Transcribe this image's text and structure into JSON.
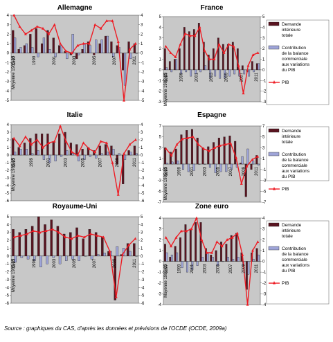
{
  "source": "Source : graphiques du CAS, d'après les données et prévisions de l'OCDE (OCDE, 2009a)",
  "colors": {
    "demand": "#5a1420",
    "balance": "#9ea4d8",
    "gdp": "#ee1c24",
    "plot_bg": "#c8c8c8"
  },
  "legend_items": [
    {
      "key": "demand",
      "label_lines": [
        "Demande",
        "intérieure",
        "totale"
      ]
    },
    {
      "key": "balance",
      "label_lines": [
        "Contribution",
        "de la balance",
        "commerciale",
        "aux variations",
        "du PIB"
      ]
    },
    {
      "key": "gdp",
      "label_lines": [
        "PIB"
      ]
    }
  ],
  "chart_data": [
    {
      "type": "bar",
      "title": "Allemagne",
      "ylabel": "Moyenne 1985-95",
      "ylim": [
        -5,
        4
      ],
      "yticks": [
        4,
        3,
        2,
        1,
        0,
        -1,
        -2,
        -3,
        -4,
        -5
      ],
      "xticks": [
        "1997",
        "1999",
        "2001",
        "2003",
        "2005",
        "2007",
        "2011"
      ],
      "series": [
        {
          "key": "demand",
          "values": [
            2.4,
            0.4,
            0.8,
            2.0,
            2.6,
            1.0,
            2.4,
            1.6,
            0.8,
            0.2,
            -0.2,
            -0.6,
            0.4,
            1.2,
            -0.2,
            1.0,
            1.8,
            1.2,
            0.8,
            -1.8,
            1.2,
            1.0
          ]
        },
        {
          "key": "balance",
          "values": [
            1.6,
            0.6,
            1.0,
            0.6,
            -0.4,
            1.6,
            0.4,
            -0.4,
            0.8,
            -0.6,
            2.0,
            -0.2,
            1.0,
            0.8,
            1.4,
            1.4,
            1.8,
            -0.4,
            0.6,
            -3.4,
            -0.6,
            0.0
          ]
        },
        {
          "key": "gdp",
          "values": [
            4.0,
            2.8,
            2.0,
            2.4,
            2.8,
            2.6,
            2.0,
            3.0,
            1.0,
            0.2,
            0.0,
            0.8,
            1.0,
            1.0,
            3.0,
            2.6,
            3.4,
            3.4,
            1.2,
            -5.0,
            0.4,
            1.0
          ]
        }
      ]
    },
    {
      "type": "bar",
      "title": "France",
      "ylabel": "Moyenne 1985-95",
      "ylim": [
        -3,
        5
      ],
      "yticks": [
        5,
        4,
        3,
        2,
        1,
        0,
        -1,
        -2,
        -3
      ],
      "xticks": [
        "1997",
        "1999",
        "2001",
        "2003",
        "2005",
        "2007",
        "2011"
      ],
      "series": [
        {
          "key": "demand",
          "values": [
            2.0,
            0.8,
            1.0,
            2.0,
            4.0,
            3.6,
            3.8,
            4.4,
            2.6,
            1.4,
            2.0,
            3.0,
            2.4,
            2.4,
            2.6,
            2.0,
            0.4,
            -0.2,
            0.8,
            0.6
          ]
        },
        {
          "key": "balance",
          "values": [
            0.2,
            -0.2,
            1.0,
            -0.4,
            -0.2,
            -0.6,
            -0.4,
            -0.2,
            0.4,
            -0.8,
            -0.6,
            -0.8,
            -0.8,
            -0.6,
            -0.4,
            -0.6,
            -0.4,
            -0.6,
            -0.2,
            0.6
          ]
        },
        {
          "key": "gdp",
          "values": [
            2.2,
            1.6,
            1.2,
            2.4,
            3.4,
            3.2,
            3.2,
            4.0,
            1.8,
            1.0,
            1.0,
            2.4,
            1.6,
            2.4,
            2.2,
            0.4,
            -2.2,
            0.4,
            1.4,
            1.6
          ]
        }
      ]
    },
    {
      "type": "bar",
      "title": "Italie",
      "ylabel": "Moyenne 1985-95",
      "ylim": [
        -6,
        4
      ],
      "yticks": [
        4,
        3,
        2,
        1,
        0,
        -1,
        -2,
        -3,
        -4,
        -5,
        -6
      ],
      "xticks": [
        "1997",
        "1999",
        "2001",
        "2003",
        "2005",
        "2007",
        "2009",
        "2011"
      ],
      "series": [
        {
          "key": "demand",
          "values": [
            2.2,
            1.0,
            1.6,
            2.2,
            2.8,
            2.8,
            2.8,
            1.8,
            2.8,
            3.0,
            1.6,
            1.4,
            0.8,
            1.0,
            0.6,
            1.2,
            1.4,
            1.2,
            -1.2,
            -3.8,
            0.6,
            1.2
          ]
        },
        {
          "key": "balance",
          "values": [
            0.4,
            0.8,
            0.8,
            0.2,
            0.6,
            -0.6,
            -1.0,
            -0.8,
            -0.2,
            0.6,
            0.2,
            -0.8,
            -0.6,
            -0.2,
            -0.4,
            0.2,
            0.4,
            0.8,
            0.2,
            -0.6,
            0.4,
            0.2
          ]
        },
        {
          "key": "gdp",
          "values": [
            2.2,
            1.2,
            2.4,
            1.4,
            2.0,
            1.0,
            1.6,
            1.8,
            3.8,
            1.8,
            0.4,
            0.0,
            1.6,
            0.8,
            0.4,
            1.8,
            1.6,
            -1.0,
            -5.2,
            0.2,
            1.4,
            2.0
          ]
        }
      ]
    },
    {
      "type": "bar",
      "title": "Espagne",
      "ylabel": "Moyenne 1985-95",
      "ylim": [
        -7,
        7
      ],
      "yticks": [
        7,
        5,
        3,
        1,
        -1,
        -3,
        -5,
        -7
      ],
      "xticks": [
        "1997",
        "1999",
        "2001",
        "2003",
        "2005",
        "2007",
        "2009",
        "2011"
      ],
      "series": [
        {
          "key": "demand",
          "values": [
            3.0,
            2.2,
            2.8,
            5.4,
            6.2,
            6.4,
            4.8,
            3.0,
            3.2,
            4.0,
            4.8,
            5.0,
            5.2,
            4.2,
            0.2,
            -6.0,
            -1.0,
            1.6
          ]
        },
        {
          "key": "balance",
          "values": [
            0.2,
            0.4,
            0.6,
            -1.0,
            -1.4,
            -1.2,
            0.0,
            0.0,
            -0.6,
            -1.6,
            -1.4,
            -1.4,
            -1.0,
            -0.6,
            1.4,
            2.8,
            0.6,
            -0.2
          ]
        },
        {
          "key": "gdp",
          "values": [
            2.8,
            1.6,
            3.6,
            4.6,
            4.8,
            5.0,
            3.6,
            2.8,
            2.4,
            3.0,
            3.4,
            3.6,
            3.8,
            1.2,
            -3.6,
            -0.4,
            0.8,
            1.4
          ]
        }
      ]
    },
    {
      "type": "bar",
      "title": "Royaume-Uni",
      "ylabel": "Moyenne 1985-95",
      "ylim": [
        -6,
        5
      ],
      "yticks": [
        5,
        4,
        3,
        2,
        1,
        0,
        -1,
        -2,
        -3,
        -4,
        -5,
        -6
      ],
      "xticks": [
        "1997",
        "1999",
        "2003",
        "2005",
        "2007",
        "2009",
        "2011"
      ],
      "series": [
        {
          "key": "demand",
          "values": [
            3.4,
            3.0,
            3.4,
            3.8,
            5.0,
            4.0,
            4.6,
            3.8,
            2.8,
            3.0,
            3.6,
            2.2,
            3.4,
            3.0,
            2.4,
            0.6,
            -5.6,
            0.2,
            1.6,
            1.6
          ]
        },
        {
          "key": "balance",
          "values": [
            -0.8,
            -0.2,
            -0.4,
            -0.6,
            -1.4,
            -1.0,
            -0.2,
            -1.0,
            -0.6,
            -0.4,
            -0.6,
            0.0,
            -0.4,
            0.2,
            0.4,
            0.6,
            1.2,
            1.0,
            0.6,
            0.0
          ]
        },
        {
          "key": "gdp",
          "values": [
            2.4,
            2.6,
            2.8,
            3.2,
            3.0,
            3.2,
            3.4,
            3.0,
            2.4,
            2.2,
            2.6,
            2.4,
            2.8,
            2.6,
            2.4,
            0.6,
            -5.2,
            0.2,
            1.4,
            2.2
          ]
        }
      ]
    },
    {
      "type": "bar",
      "title": "Zone euro",
      "ylabel": "Moyenne 1985-95",
      "ylim": [
        -4,
        4
      ],
      "yticks": [
        4,
        3,
        2,
        1,
        0,
        -1,
        -2,
        -3,
        -4
      ],
      "xticks": [
        "1997",
        "1999",
        "2001",
        "2003",
        "2005",
        "2007",
        "2009",
        "2011"
      ],
      "series": [
        {
          "key": "demand",
          "values": [
            1.6,
            0.4,
            1.4,
            2.2,
            3.4,
            3.0,
            3.6,
            3.6,
            1.2,
            0.6,
            1.0,
            1.8,
            1.6,
            2.4,
            2.6,
            0.8,
            -2.6,
            0.8,
            1.2
          ]
        },
        {
          "key": "balance",
          "values": [
            0.8,
            0.6,
            0.8,
            -0.6,
            -1.0,
            -0.8,
            -0.4,
            0.4,
            0.8,
            0.4,
            -0.4,
            0.0,
            0.4,
            0.2,
            0.4,
            -0.4,
            -1.2,
            0.2,
            0.6
          ]
        },
        {
          "key": "gdp",
          "values": [
            2.2,
            1.4,
            2.2,
            2.8,
            2.8,
            3.0,
            4.0,
            2.0,
            0.8,
            0.8,
            1.8,
            1.4,
            2.0,
            2.2,
            2.6,
            0.6,
            -4.0,
            1.0,
            1.8
          ]
        }
      ]
    }
  ]
}
